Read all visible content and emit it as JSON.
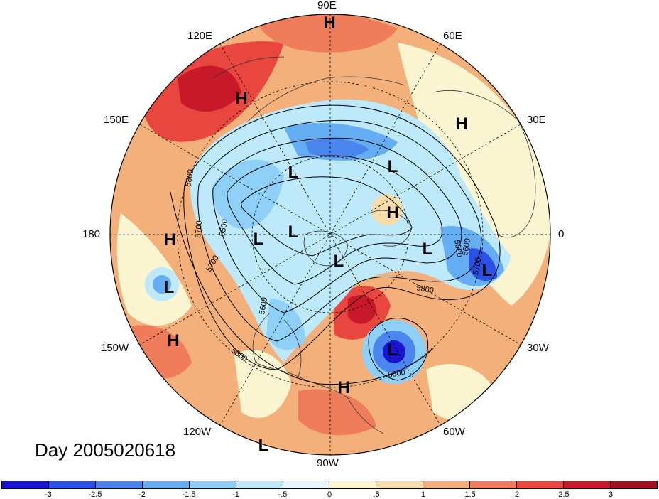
{
  "title": "Day 2005020618",
  "longitude_labels": [
    "90E",
    "60E",
    "30E",
    "0",
    "30W",
    "60W",
    "90W",
    "120W",
    "150W",
    "180",
    "150E",
    "120E"
  ],
  "pressure_markers": [
    {
      "label": "H"
    },
    {
      "label": "H"
    },
    {
      "label": "H"
    },
    {
      "label": "L"
    },
    {
      "label": "L"
    },
    {
      "label": "H"
    },
    {
      "label": "L"
    },
    {
      "label": "L"
    },
    {
      "label": "L"
    },
    {
      "label": "H"
    },
    {
      "label": "L"
    },
    {
      "label": "L"
    },
    {
      "label": "L"
    },
    {
      "label": "H"
    },
    {
      "label": "L"
    },
    {
      "label": "H"
    },
    {
      "label": "L"
    }
  ],
  "contour_labels": [
    "5800",
    "5700",
    "5600",
    "5500",
    "5700",
    "5600",
    "5800",
    "5600",
    "5700",
    "5800",
    "5800"
  ],
  "colorbar": {
    "ticks": [
      "-3",
      "-2.5",
      "-2",
      "-1.5",
      "-1",
      "-.5",
      "0",
      ".5",
      "1",
      "1.5",
      "2",
      "2.5",
      "3"
    ],
    "colors": [
      "#1a14d2",
      "#2a50e6",
      "#4a86ee",
      "#66aef4",
      "#8ed0f8",
      "#bde9fb",
      "#e6f6fc",
      "#fbf5d2",
      "#f7ddaa",
      "#f4b07a",
      "#ef7c5a",
      "#e8463e",
      "#c8192a",
      "#a0101e"
    ]
  },
  "colors": {
    "warm_strong": "#e8463e",
    "warm": "#f4b07a",
    "neutral": "#fbf5d2",
    "cool": "#8ed0f8",
    "cool_strong": "#2a50e6"
  }
}
